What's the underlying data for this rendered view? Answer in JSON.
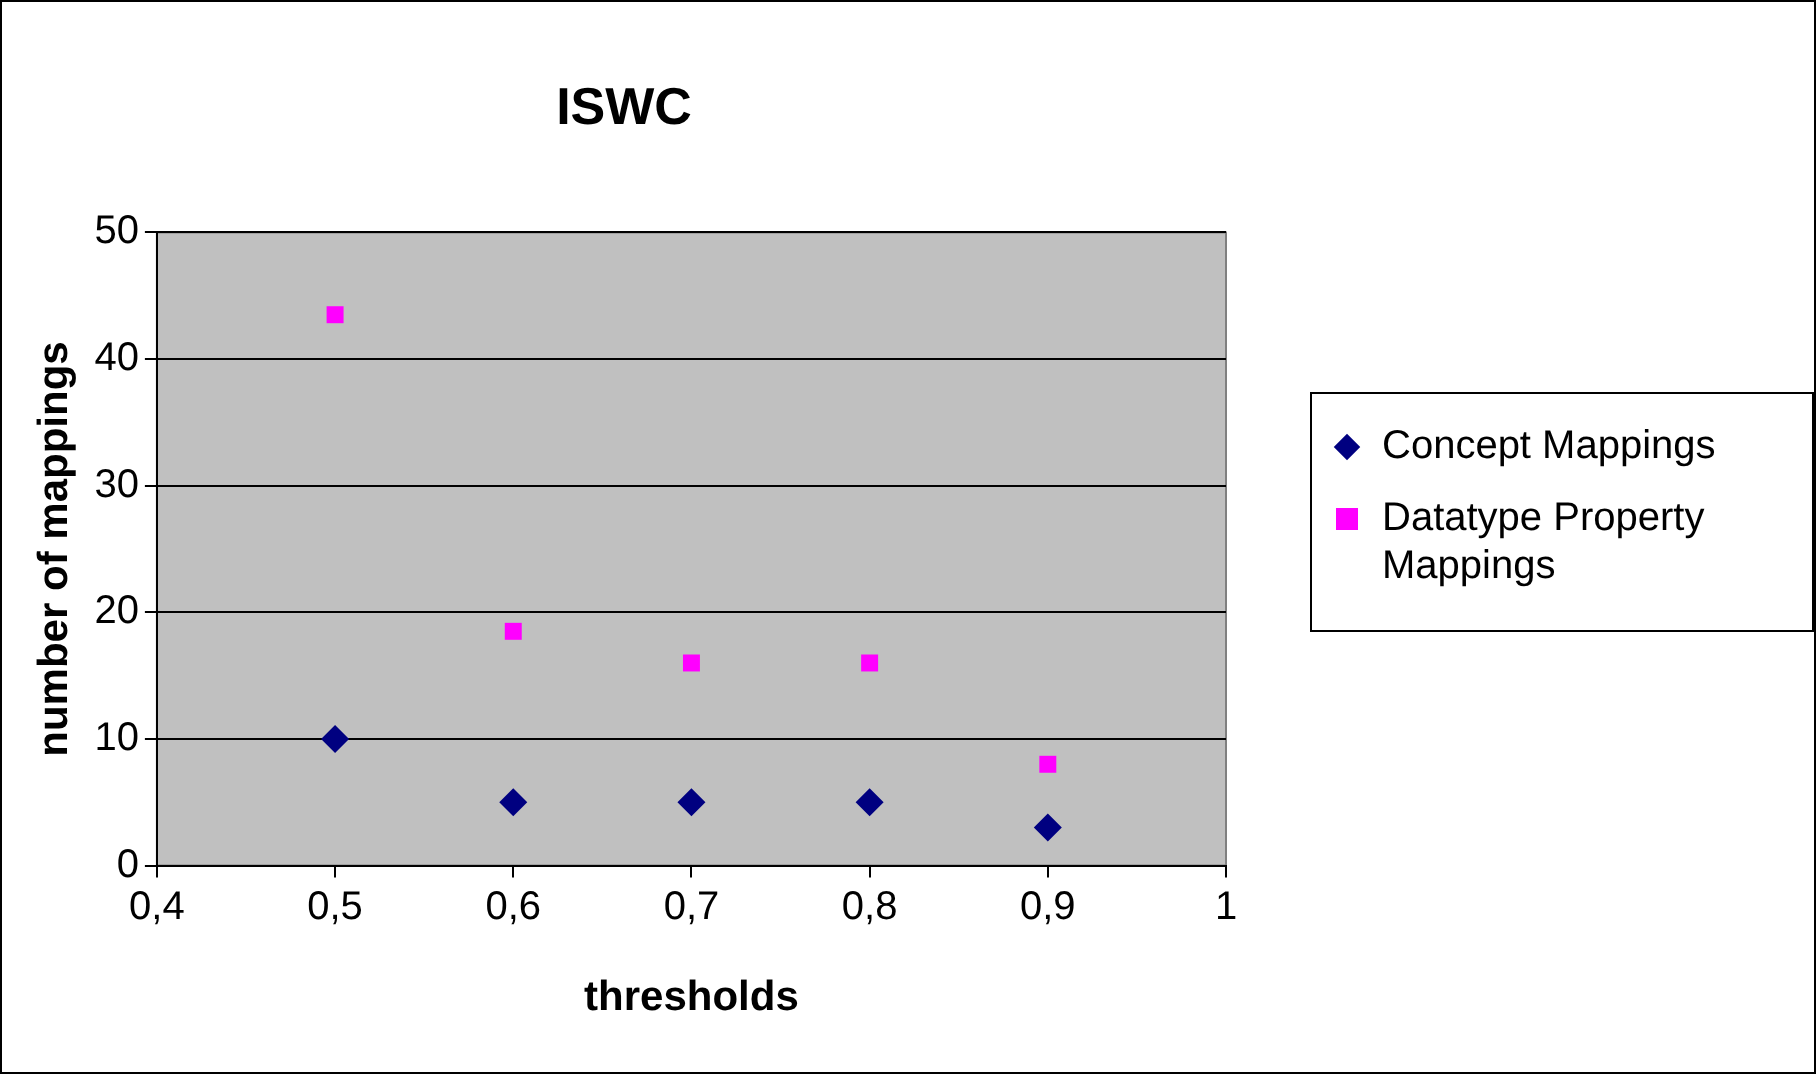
{
  "chart_data": {
    "type": "scatter",
    "title": "ISWC",
    "xlabel": "thresholds",
    "ylabel": "number of mappings",
    "x": [
      0.5,
      0.6,
      0.7,
      0.8,
      0.9
    ],
    "series": [
      {
        "name": "Concept Mappings",
        "color": "#000080",
        "marker": "diamond",
        "values": [
          10,
          5,
          5,
          5,
          3
        ]
      },
      {
        "name": "Datatype Property Mappings",
        "color": "#ff00ff",
        "marker": "square",
        "values": [
          43.5,
          18.5,
          16,
          16,
          8
        ]
      }
    ],
    "xlim": [
      0.4,
      1
    ],
    "xticks": [
      {
        "value": 0.4,
        "label": "0,4"
      },
      {
        "value": 0.5,
        "label": "0,5"
      },
      {
        "value": 0.6,
        "label": "0,6"
      },
      {
        "value": 0.7,
        "label": "0,7"
      },
      {
        "value": 0.8,
        "label": "0,8"
      },
      {
        "value": 0.9,
        "label": "0,9"
      },
      {
        "value": 1,
        "label": "1"
      }
    ],
    "ylim": [
      0,
      50
    ],
    "yticks": [
      0,
      10,
      20,
      30,
      40,
      50
    ],
    "grid": "y",
    "legend": "right"
  }
}
